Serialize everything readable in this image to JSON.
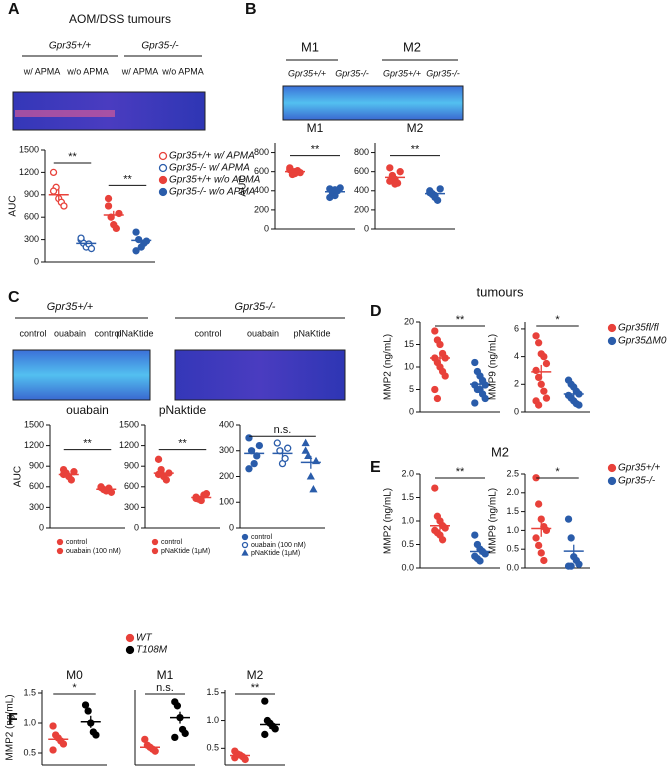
{
  "panel_labels": [
    "A",
    "B",
    "C",
    "D",
    "E",
    "F"
  ],
  "gels": {
    "A": {
      "title": "AOM/DSS tumours",
      "genotypes": [
        "Gpr35+/+",
        "Gpr35-/-"
      ],
      "conditions": [
        "w/ APMA",
        "w/o APMA",
        "w/ APMA",
        "w/o APMA"
      ]
    },
    "B": {
      "cells": [
        "M1",
        "M2"
      ],
      "genotypes": [
        "Gpr35+/+",
        "Gpr35-/-",
        "Gpr35+/+",
        "Gpr35-/-"
      ]
    },
    "C": {
      "genotypes": [
        "Gpr35+/+",
        "Gpr35-/-"
      ],
      "conditions": [
        "control",
        "ouabain",
        "control",
        "pNaKtide",
        "control",
        "ouabain",
        "pNaKtide"
      ]
    }
  },
  "headers": {
    "D": "tumours",
    "E": "M2"
  },
  "chart_data": [
    {
      "type": "dot",
      "y_label": "AUC",
      "ylim": [
        0,
        1500
      ],
      "yticks": [
        0,
        300,
        600,
        900,
        1200,
        1500
      ],
      "annotations": [
        "**",
        "**"
      ],
      "series": [
        {
          "name": "Gpr35+/+ w/ APMA",
          "color": "#e8413a",
          "filled": false,
          "marker": "circle",
          "values": [
            1200,
            1000,
            850,
            800,
            750,
            950
          ],
          "mean": 900,
          "sem": 70
        },
        {
          "name": "Gpr35-/- w/ APMA",
          "color": "#2a5caa",
          "filled": false,
          "marker": "circle",
          "values": [
            300,
            250,
            200,
            240,
            180,
            320
          ],
          "mean": 250,
          "sem": 22
        },
        {
          "name": "Gpr35+/+ w/o APMA",
          "color": "#e8413a",
          "filled": true,
          "marker": "circle",
          "values": [
            750,
            600,
            500,
            450,
            650,
            850
          ],
          "mean": 630,
          "sem": 55
        },
        {
          "name": "Gpr35-/- w/o APMA",
          "color": "#2a5caa",
          "filled": true,
          "marker": "circle",
          "values": [
            400,
            300,
            200,
            250,
            280,
            150
          ],
          "mean": 290,
          "sem": 35
        }
      ]
    },
    {
      "type": "dot",
      "title": "M1",
      "y_label": "AUC",
      "ylim": [
        0,
        900
      ],
      "yticks": [
        0,
        200,
        400,
        600,
        800
      ],
      "annotations": [
        "**"
      ],
      "series": [
        {
          "color": "#e8413a",
          "filled": true,
          "marker": "circle",
          "values": [
            620,
            600,
            580,
            610,
            590,
            640,
            570,
            600
          ],
          "mean": 600,
          "sem": 10
        },
        {
          "color": "#2a5caa",
          "filled": true,
          "marker": "circle",
          "values": [
            420,
            380,
            350,
            400,
            430,
            330,
            390,
            410
          ],
          "mean": 390,
          "sem": 12
        }
      ]
    },
    {
      "type": "dot",
      "title": "M2",
      "ylim": [
        0,
        900
      ],
      "yticks": [
        0,
        200,
        400,
        600,
        800
      ],
      "annotations": [
        "**"
      ],
      "series": [
        {
          "color": "#e8413a",
          "filled": true,
          "marker": "circle",
          "values": [
            640,
            560,
            520,
            480,
            600,
            500,
            550,
            470
          ],
          "mean": 540,
          "sem": 25
        },
        {
          "color": "#2a5caa",
          "filled": true,
          "marker": "circle",
          "values": [
            400,
            370,
            330,
            300,
            420,
            380,
            360,
            350
          ],
          "mean": 370,
          "sem": 15
        }
      ]
    },
    {
      "type": "dot",
      "title": "ouabain",
      "y_label": "AUC",
      "ylim": [
        0,
        1500
      ],
      "yticks": [
        0,
        300,
        600,
        900,
        1200,
        1500
      ],
      "annotations": [
        "**"
      ],
      "series": [
        {
          "name": "control",
          "color": "#e8413a",
          "filled": true,
          "marker": "circle",
          "values": [
            850,
            800,
            750,
            700,
            820,
            780
          ],
          "mean": 780,
          "sem": 25
        },
        {
          "name": "ouabain (100 nM)",
          "color": "#e8413a",
          "filled": true,
          "marker": "circle",
          "values": [
            600,
            560,
            540,
            580,
            520,
            590
          ],
          "mean": 565,
          "sem": 15
        }
      ]
    },
    {
      "type": "dot",
      "title": "pNaktide",
      "ylim": [
        0,
        1500
      ],
      "yticks": [
        0,
        300,
        600,
        900,
        1200,
        1500
      ],
      "annotations": [
        "**"
      ],
      "series": [
        {
          "name": "control",
          "color": "#e8413a",
          "filled": true,
          "marker": "circle",
          "values": [
            1000,
            850,
            750,
            700,
            800,
            780
          ],
          "mean": 800,
          "sem": 40
        },
        {
          "name": "pNaKtide (1μM)",
          "color": "#e8413a",
          "filled": true,
          "marker": "circle",
          "values": [
            450,
            420,
            400,
            480,
            500,
            430
          ],
          "mean": 445,
          "sem": 15
        }
      ]
    },
    {
      "type": "dot",
      "ylim": [
        0,
        400
      ],
      "yticks": [
        0,
        100,
        200,
        300,
        400
      ],
      "annotations": [
        "n.s."
      ],
      "series": [
        {
          "name": "control",
          "color": "#2a5caa",
          "filled": true,
          "marker": "circle",
          "values": [
            350,
            300,
            250,
            280,
            320,
            230
          ],
          "mean": 290,
          "sem": 18
        },
        {
          "name": "ouabain (100 nM)",
          "color": "#2a5caa",
          "filled": false,
          "marker": "circle",
          "values": [
            330,
            300,
            250,
            270,
            310
          ],
          "mean": 290,
          "sem": 15
        },
        {
          "name": "pNaKtide (1μM)",
          "color": "#2a5caa",
          "filled": true,
          "marker": "triangle",
          "values": [
            330,
            280,
            200,
            150,
            260,
            300
          ],
          "mean": 255,
          "sem": 25
        }
      ]
    },
    {
      "type": "dot",
      "y_label": "MMP2 (ng/mL)",
      "ylim": [
        0,
        20
      ],
      "yticks": [
        0,
        5,
        10,
        15,
        20
      ],
      "annotations": [
        "**"
      ],
      "series": [
        {
          "name": "Gpr35fl/fl",
          "color": "#e8413a",
          "filled": true,
          "marker": "circle",
          "values": [
            18,
            16,
            15,
            13,
            12,
            12,
            11,
            10,
            9,
            8,
            5,
            3
          ],
          "mean": 12,
          "sem": 1.3
        },
        {
          "name": "Gpr35ΔM0",
          "color": "#2a5caa",
          "filled": true,
          "marker": "circle",
          "values": [
            11,
            9,
            8,
            7,
            6,
            6,
            5,
            5,
            4,
            3,
            2
          ],
          "mean": 6.2,
          "sem": 0.8
        }
      ]
    },
    {
      "type": "dot",
      "y_label": "MMP9 (ng/mL)",
      "ylim": [
        0,
        6.5
      ],
      "yticks": [
        0,
        2,
        4,
        6
      ],
      "annotations": [
        "*"
      ],
      "series": [
        {
          "color": "#e8413a",
          "filled": true,
          "marker": "circle",
          "values": [
            5.5,
            5,
            4.2,
            4,
            3.5,
            3,
            2.5,
            2,
            1.5,
            1,
            0.8,
            0.5
          ],
          "mean": 2.9,
          "sem": 0.5
        },
        {
          "color": "#2a5caa",
          "filled": true,
          "marker": "circle",
          "values": [
            2.3,
            2,
            1.8,
            1.5,
            1.3,
            1.2,
            1,
            0.8,
            0.6,
            0.5
          ],
          "mean": 1.3,
          "sem": 0.2
        }
      ]
    },
    {
      "type": "dot",
      "y_label": "MMP2 (ng/mL)",
      "ylim": [
        0,
        2
      ],
      "yticks": [
        {
          "value": 0,
          "label": "0.0"
        },
        0.5,
        {
          "value": 1,
          "label": "1.0"
        },
        1.5,
        {
          "value": 2,
          "label": "2.0"
        }
      ],
      "annotations": [
        "**"
      ],
      "series": [
        {
          "name": "Gpr35+/+",
          "color": "#e8413a",
          "filled": true,
          "marker": "circle",
          "values": [
            1.7,
            1.1,
            1,
            0.9,
            0.85,
            0.8,
            0.75,
            0.7,
            0.6
          ],
          "mean": 0.9,
          "sem": 0.1
        },
        {
          "name": "Gpr35-/-",
          "color": "#2a5caa",
          "filled": true,
          "marker": "circle",
          "values": [
            0.7,
            0.5,
            0.4,
            0.35,
            0.3,
            0.25,
            0.2,
            0.15
          ],
          "mean": 0.35,
          "sem": 0.06
        }
      ]
    },
    {
      "type": "dot",
      "y_label": "MMP9 (ng/mL)",
      "ylim": [
        0,
        2.5
      ],
      "yticks": [
        {
          "value": 0,
          "label": "0.0"
        },
        0.5,
        {
          "value": 1,
          "label": "1.0"
        },
        1.5,
        {
          "value": 2,
          "label": "2.0"
        },
        2.5
      ],
      "annotations": [
        "*"
      ],
      "series": [
        {
          "color": "#e8413a",
          "filled": true,
          "marker": "circle",
          "values": [
            2.4,
            1.7,
            1.3,
            1.1,
            1,
            0.8,
            0.6,
            0.4,
            0.2
          ],
          "mean": 1.05,
          "sem": 0.22
        },
        {
          "color": "#2a5caa",
          "filled": true,
          "marker": "circle",
          "values": [
            1.3,
            0.8,
            0.3,
            0.2,
            0.1,
            0.05,
            0.05
          ],
          "mean": 0.45,
          "sem": 0.17
        }
      ]
    },
    {
      "type": "dot",
      "title": "M0",
      "y_label": "MMP2 (ng/mL)",
      "ylim": [
        0.3,
        1.55
      ],
      "yticks": [
        0.5,
        {
          "value": 1,
          "label": "1.0"
        },
        1.5
      ],
      "annotations": [
        "*"
      ],
      "series": [
        {
          "name": "WT",
          "color": "#e8413a",
          "filled": true,
          "marker": "circle",
          "values": [
            0.95,
            0.8,
            0.75,
            0.7,
            0.65,
            0.55
          ],
          "mean": 0.73,
          "sem": 0.06
        },
        {
          "name": "T108M",
          "color": "#000000",
          "filled": true,
          "marker": "circle",
          "values": [
            1.3,
            1.2,
            1.0,
            0.85,
            0.8
          ],
          "mean": 1.02,
          "sem": 0.1
        }
      ]
    },
    {
      "type": "dot",
      "title": "M1",
      "ylim": [
        0.7,
        2.6
      ],
      "annotations": [
        "n.s."
      ],
      "series": [
        {
          "color": "#e8413a",
          "filled": true,
          "marker": "circle",
          "values": [
            1.35,
            1.2,
            1.15,
            1.1,
            1.05
          ],
          "mean": 1.15,
          "sem": 0.05
        },
        {
          "color": "#000000",
          "filled": true,
          "marker": "circle",
          "values": [
            2.3,
            2.2,
            1.9,
            1.6,
            1.5,
            1.4
          ],
          "mean": 1.9,
          "sem": 0.15
        }
      ]
    },
    {
      "type": "dot",
      "title": "M2",
      "ylim": [
        0.2,
        1.55
      ],
      "yticks": [
        0.5,
        {
          "value": 1,
          "label": "1.0"
        },
        1.5
      ],
      "annotations": [
        "**"
      ],
      "series": [
        {
          "color": "#e8413a",
          "filled": true,
          "marker": "circle",
          "values": [
            0.45,
            0.4,
            0.38,
            0.35,
            0.3,
            0.33
          ],
          "mean": 0.37,
          "sem": 0.02
        },
        {
          "color": "#000000",
          "filled": true,
          "marker": "circle",
          "values": [
            1.35,
            1.0,
            0.95,
            0.9,
            0.85,
            0.75
          ],
          "mean": 0.93,
          "sem": 0.08
        }
      ]
    }
  ]
}
